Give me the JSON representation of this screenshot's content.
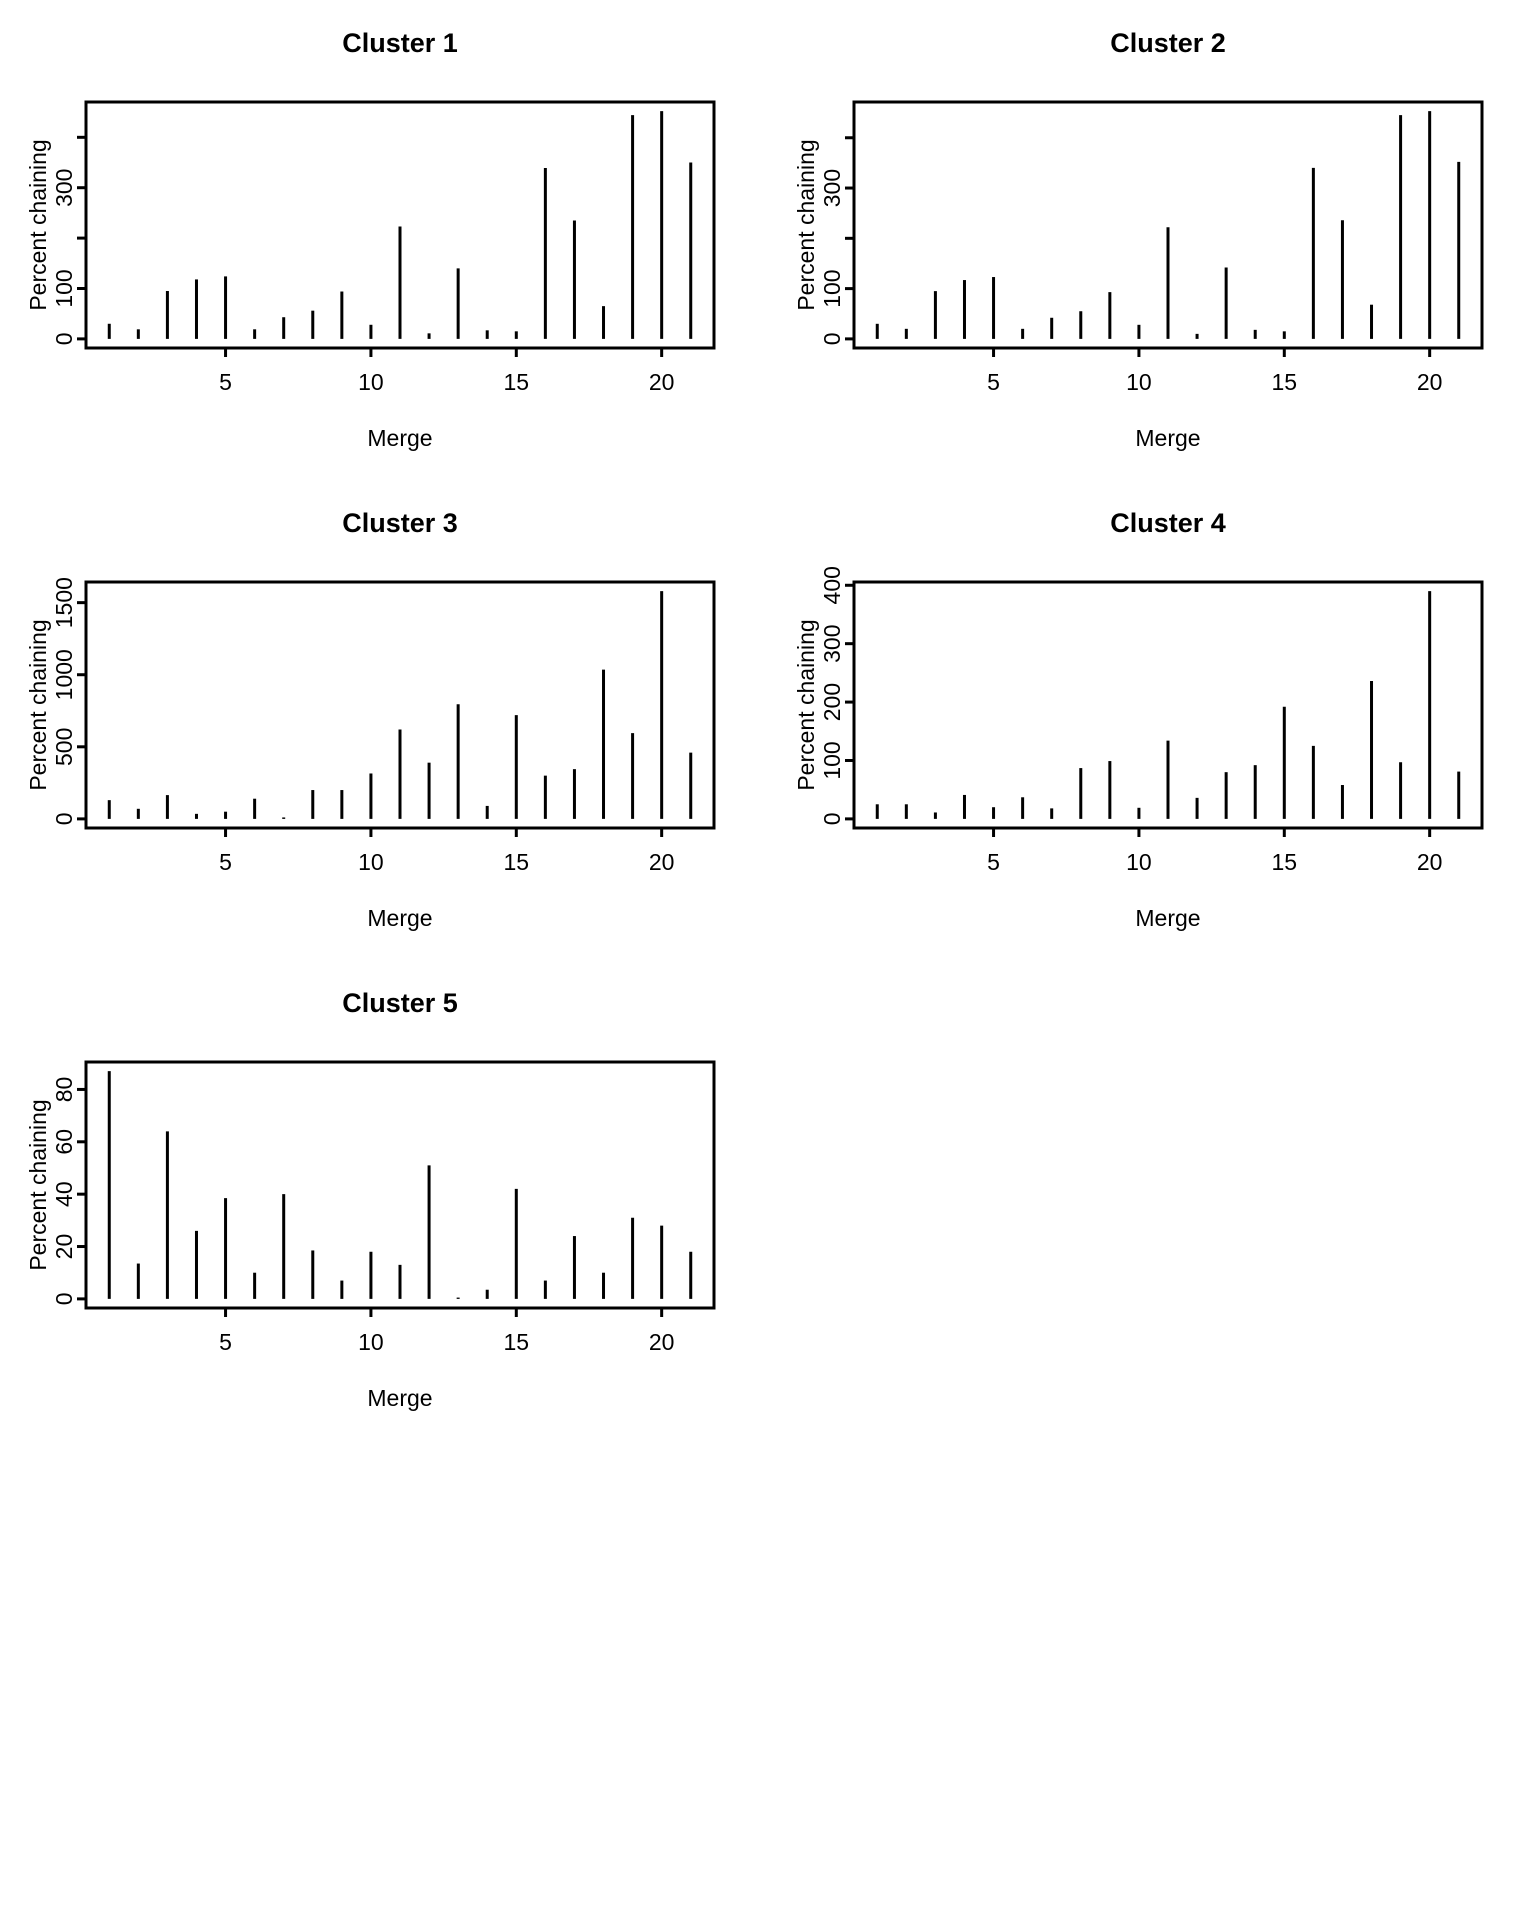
{
  "page": {
    "background": "#ffffff",
    "foreground": "#000000",
    "description": "Five R-style high-density (type=h) bar plots of percent chaining per merge step, arranged in a 2-column grid"
  },
  "chart_data": [
    {
      "type": "bar",
      "title": "Cluster 1",
      "xlabel": "Merge",
      "ylabel": "Percent chaining",
      "grid": false,
      "legend": null,
      "x": [
        1,
        2,
        3,
        4,
        5,
        6,
        7,
        8,
        9,
        10,
        11,
        12,
        13,
        14,
        15,
        16,
        17,
        18,
        19,
        20,
        21
      ],
      "values": [
        30,
        19,
        95,
        118,
        124,
        19,
        43,
        56,
        94,
        28,
        223,
        11,
        140,
        17,
        15,
        339,
        235,
        65,
        444,
        452,
        350
      ],
      "xlim": [
        1,
        21
      ],
      "ylim": [
        0,
        452
      ],
      "x_ticks": [
        5,
        10,
        15,
        20
      ],
      "y_ticks": [
        {
          "value": 0,
          "label": "0"
        },
        {
          "value": 100,
          "label": "100"
        },
        {
          "value": 200,
          "label": ""
        },
        {
          "value": 300,
          "label": "300"
        },
        {
          "value": 400,
          "label": ""
        }
      ]
    },
    {
      "type": "bar",
      "title": "Cluster 2",
      "xlabel": "Merge",
      "ylabel": "Percent chaining",
      "grid": false,
      "legend": null,
      "x": [
        1,
        2,
        3,
        4,
        5,
        6,
        7,
        8,
        9,
        10,
        11,
        12,
        13,
        14,
        15,
        16,
        17,
        18,
        19,
        20,
        21
      ],
      "values": [
        30,
        20,
        95,
        117,
        123,
        20,
        42,
        55,
        93,
        28,
        222,
        10,
        142,
        18,
        15,
        340,
        236,
        68,
        445,
        453,
        352
      ],
      "xlim": [
        1,
        21
      ],
      "ylim": [
        0,
        453
      ],
      "x_ticks": [
        5,
        10,
        15,
        20
      ],
      "y_ticks": [
        {
          "value": 0,
          "label": "0"
        },
        {
          "value": 100,
          "label": "100"
        },
        {
          "value": 200,
          "label": ""
        },
        {
          "value": 300,
          "label": "300"
        },
        {
          "value": 400,
          "label": ""
        }
      ]
    },
    {
      "type": "bar",
      "title": "Cluster 3",
      "xlabel": "Merge",
      "ylabel": "Percent chaining",
      "grid": false,
      "legend": null,
      "x": [
        1,
        2,
        3,
        4,
        5,
        6,
        7,
        8,
        9,
        10,
        11,
        12,
        13,
        14,
        15,
        16,
        17,
        18,
        19,
        20,
        21
      ],
      "values": [
        130,
        70,
        165,
        35,
        50,
        140,
        10,
        200,
        200,
        315,
        620,
        390,
        795,
        90,
        720,
        300,
        345,
        1035,
        595,
        1580,
        460
      ],
      "xlim": [
        1,
        21
      ],
      "ylim": [
        0,
        1580
      ],
      "x_ticks": [
        5,
        10,
        15,
        20
      ],
      "y_ticks": [
        {
          "value": 0,
          "label": "0"
        },
        {
          "value": 500,
          "label": "500"
        },
        {
          "value": 1000,
          "label": "1000"
        },
        {
          "value": 1500,
          "label": "1500"
        }
      ]
    },
    {
      "type": "bar",
      "title": "Cluster 4",
      "xlabel": "Merge",
      "ylabel": "Percent chaining",
      "grid": false,
      "legend": null,
      "x": [
        1,
        2,
        3,
        4,
        5,
        6,
        7,
        8,
        9,
        10,
        11,
        12,
        13,
        14,
        15,
        16,
        17,
        18,
        19,
        20,
        21
      ],
      "values": [
        25,
        25,
        11,
        41,
        20,
        37,
        18,
        87,
        99,
        19,
        134,
        36,
        80,
        92,
        192,
        125,
        58,
        236,
        97,
        390,
        81
      ],
      "xlim": [
        1,
        21
      ],
      "ylim": [
        0,
        390
      ],
      "x_ticks": [
        5,
        10,
        15,
        20
      ],
      "y_ticks": [
        {
          "value": 0,
          "label": "0"
        },
        {
          "value": 100,
          "label": "100"
        },
        {
          "value": 200,
          "label": "200"
        },
        {
          "value": 300,
          "label": "300"
        },
        {
          "value": 400,
          "label": "400"
        }
      ]
    },
    {
      "type": "bar",
      "title": "Cluster 5",
      "xlabel": "Merge",
      "ylabel": "Percent chaining",
      "grid": false,
      "legend": null,
      "x": [
        1,
        2,
        3,
        4,
        5,
        6,
        7,
        8,
        9,
        10,
        11,
        12,
        13,
        14,
        15,
        16,
        17,
        18,
        19,
        20,
        21
      ],
      "values": [
        87,
        13.5,
        64,
        26,
        38.5,
        10,
        40,
        18.5,
        7,
        18,
        13,
        51,
        0.5,
        3.5,
        42,
        7,
        24,
        10,
        31,
        28,
        18
      ],
      "xlim": [
        1,
        21
      ],
      "ylim": [
        0,
        87
      ],
      "x_ticks": [
        5,
        10,
        15,
        20
      ],
      "y_ticks": [
        {
          "value": 0,
          "label": "0"
        },
        {
          "value": 20,
          "label": "20"
        },
        {
          "value": 40,
          "label": "40"
        },
        {
          "value": 60,
          "label": "60"
        },
        {
          "value": 80,
          "label": "80"
        }
      ]
    }
  ]
}
